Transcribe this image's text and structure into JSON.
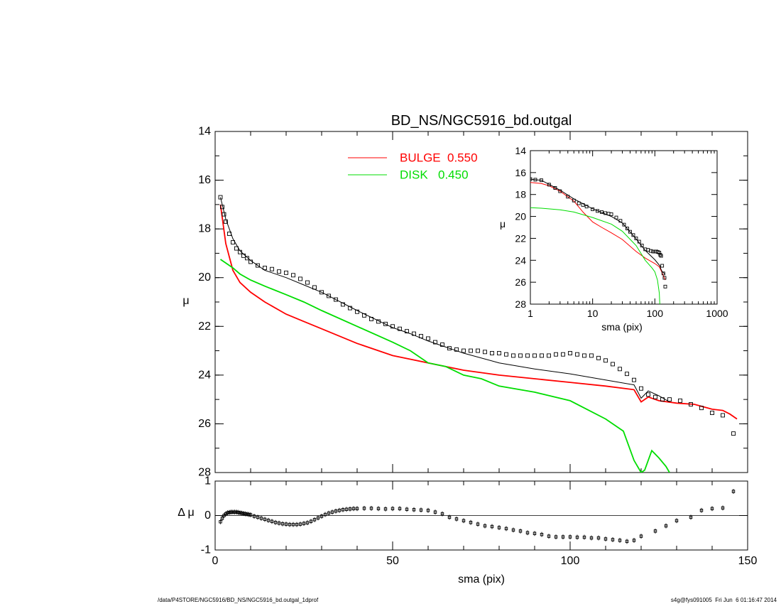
{
  "chart_data": [
    {
      "id": "main",
      "type": "scatter",
      "title": "BD_NS/NGC5916_bd.outgal",
      "xlabel": "",
      "ylabel": "μ",
      "xlim": [
        0,
        150
      ],
      "ylim": [
        28,
        14
      ],
      "y_inverted": true,
      "yticks": [
        "14",
        "16",
        "18",
        "20",
        "22",
        "24",
        "26",
        "28"
      ],
      "legend": [
        {
          "label": "BULGE",
          "value": "0.550",
          "color": "#ff0000"
        },
        {
          "label": "DISK",
          "value": "0.450",
          "color": "#00dd00"
        }
      ],
      "legend_position": "top-center",
      "series": [
        {
          "color": "#ff0000",
          "style": "line",
          "x": [
            1.5,
            3,
            5,
            7,
            10,
            14,
            20,
            25,
            30,
            40,
            50,
            60,
            65,
            70,
            80,
            90,
            100,
            110,
            118,
            120,
            122,
            125,
            130,
            135,
            140,
            143,
            145,
            147
          ],
          "y": [
            17.0,
            18.6,
            19.7,
            20.2,
            20.6,
            21.0,
            21.5,
            21.8,
            22.1,
            22.7,
            23.2,
            23.5,
            23.65,
            23.8,
            24.0,
            24.15,
            24.3,
            24.45,
            24.6,
            25.1,
            24.9,
            25.05,
            25.15,
            25.2,
            25.4,
            25.45,
            25.6,
            25.8
          ]
        },
        {
          "color": "#00dd00",
          "style": "line",
          "x": [
            1.5,
            3,
            5,
            7,
            10,
            14,
            20,
            25,
            30,
            40,
            50,
            55,
            60,
            65,
            70,
            75,
            80,
            90,
            100,
            110,
            115,
            118,
            120,
            121,
            123,
            125,
            127,
            128
          ],
          "y": [
            19.25,
            19.4,
            19.6,
            19.85,
            20.1,
            20.35,
            20.7,
            21.0,
            21.35,
            22.0,
            22.65,
            23.0,
            23.5,
            23.65,
            24.0,
            24.15,
            24.45,
            24.7,
            25.05,
            25.8,
            26.3,
            27.5,
            28.0,
            27.9,
            27.1,
            27.4,
            27.75,
            28.0
          ]
        },
        {
          "color": "#000000",
          "style": "line",
          "x": [
            1.5,
            3,
            5,
            7,
            10,
            14,
            20,
            25,
            30,
            40,
            50,
            55,
            60,
            70,
            80,
            90,
            100,
            110,
            118,
            120,
            122,
            125,
            128
          ],
          "y": [
            16.7,
            17.6,
            18.4,
            18.9,
            19.3,
            19.7,
            20.0,
            20.3,
            20.6,
            21.35,
            22.05,
            22.3,
            22.6,
            23.1,
            23.5,
            23.75,
            23.95,
            24.2,
            24.4,
            24.95,
            24.65,
            24.85,
            25.1
          ]
        },
        {
          "color": "#000000",
          "style": "markers",
          "x": [
            1.5,
            2,
            2.5,
            3,
            4,
            5,
            6,
            7,
            8,
            9,
            10,
            12,
            14,
            16,
            18,
            20,
            22,
            24,
            26,
            28,
            30,
            32,
            34,
            36,
            38,
            40,
            42,
            44,
            46,
            48,
            50,
            52,
            54,
            56,
            58,
            60,
            62,
            64,
            66,
            68,
            70,
            72,
            74,
            76,
            78,
            80,
            82,
            84,
            86,
            88,
            90,
            92,
            94,
            96,
            98,
            100,
            102,
            104,
            106,
            108,
            110,
            112,
            114,
            116,
            118,
            120,
            122,
            124,
            126,
            128,
            131,
            134,
            137,
            140,
            143,
            146
          ],
          "y": [
            16.7,
            17.1,
            17.4,
            17.7,
            18.2,
            18.55,
            18.8,
            18.95,
            19.1,
            19.2,
            19.35,
            19.5,
            19.6,
            19.65,
            19.75,
            19.8,
            19.9,
            20.05,
            20.2,
            20.4,
            20.6,
            20.75,
            20.9,
            21.1,
            21.25,
            21.4,
            21.55,
            21.7,
            21.8,
            21.9,
            22.0,
            22.1,
            22.2,
            22.3,
            22.4,
            22.5,
            22.65,
            22.75,
            22.9,
            22.95,
            23.0,
            23.0,
            23.0,
            23.05,
            23.1,
            23.1,
            23.15,
            23.2,
            23.2,
            23.2,
            23.2,
            23.2,
            23.2,
            23.15,
            23.15,
            23.1,
            23.15,
            23.2,
            23.2,
            23.3,
            23.4,
            23.55,
            23.75,
            23.95,
            24.2,
            24.55,
            24.8,
            24.9,
            25.0,
            25.0,
            25.05,
            25.2,
            25.35,
            25.55,
            25.65,
            26.4
          ]
        }
      ]
    },
    {
      "id": "inset",
      "type": "scatter",
      "xlabel": "sma (pix)",
      "ylabel": "μ",
      "xscale": "log",
      "xlim": [
        1,
        1000
      ],
      "xticks": [
        "1",
        "10",
        "100",
        "1000"
      ],
      "ylim": [
        28,
        14
      ],
      "yticks": [
        "14",
        "16",
        "18",
        "20",
        "22",
        "24",
        "26",
        "28"
      ],
      "series": [
        {
          "color": "#ff0000",
          "style": "line",
          "x": [
            1,
            1.5,
            2,
            3,
            5,
            7,
            10,
            14,
            20,
            30,
            50,
            70,
            100,
            118,
            130,
            147
          ],
          "y": [
            16.9,
            17.0,
            17.2,
            17.7,
            18.6,
            19.6,
            20.5,
            21.0,
            21.5,
            22.1,
            23.2,
            23.8,
            24.3,
            24.6,
            25.1,
            25.8
          ]
        },
        {
          "color": "#00dd00",
          "style": "line",
          "x": [
            1,
            1.5,
            3,
            5,
            10,
            20,
            30,
            50,
            70,
            90,
            100,
            110,
            118,
            120
          ],
          "y": [
            19.2,
            19.25,
            19.4,
            19.6,
            20.1,
            20.7,
            21.35,
            22.65,
            24.0,
            24.7,
            25.05,
            25.8,
            27.0,
            28.0
          ]
        },
        {
          "color": "#000000",
          "style": "line",
          "x": [
            1,
            1.5,
            3,
            5,
            10,
            20,
            30,
            50,
            70,
            100,
            120,
            125,
            130,
            147
          ],
          "y": [
            16.6,
            16.7,
            17.6,
            18.4,
            19.3,
            20.0,
            20.6,
            22.05,
            23.1,
            23.95,
            24.5,
            24.8,
            25.0,
            25.3
          ]
        },
        {
          "color": "#000000",
          "style": "markers",
          "x": [
            1,
            1.2,
            1.5,
            2,
            2.5,
            3,
            4,
            5,
            6,
            7,
            8,
            10,
            12,
            14,
            16,
            18,
            20,
            24,
            28,
            32,
            36,
            40,
            45,
            50,
            56,
            62,
            70,
            78,
            86,
            94,
            100,
            106,
            112,
            118,
            122,
            126,
            131,
            137,
            143,
            147
          ],
          "y": [
            16.6,
            16.65,
            16.7,
            17.1,
            17.4,
            17.7,
            18.2,
            18.55,
            18.8,
            18.95,
            19.1,
            19.35,
            19.5,
            19.6,
            19.7,
            19.75,
            19.8,
            20.1,
            20.4,
            20.75,
            21.1,
            21.4,
            21.7,
            22.0,
            22.3,
            22.65,
            23.0,
            23.05,
            23.15,
            23.2,
            23.2,
            23.2,
            23.25,
            23.3,
            23.5,
            23.6,
            24.5,
            25.2,
            25.6,
            26.4
          ]
        }
      ]
    },
    {
      "id": "residual",
      "type": "scatter",
      "xlabel": "sma (pix)",
      "ylabel": "Δ μ",
      "xlim": [
        0,
        150
      ],
      "xticks": [
        "0",
        "50",
        "100",
        "150"
      ],
      "ylim": [
        -1,
        1
      ],
      "yticks": [
        "1",
        "0",
        "-1"
      ],
      "series": [
        {
          "color": "#000000",
          "style": "markers",
          "x": [
            1.5,
            2,
            2.5,
            3,
            3.5,
            4,
            4.5,
            5,
            5.5,
            6,
            6.5,
            7,
            7.5,
            8,
            8.5,
            9,
            9.5,
            10,
            11,
            12,
            13,
            14,
            15,
            16,
            17,
            18,
            19,
            20,
            21,
            22,
            23,
            24,
            25,
            26,
            27,
            28,
            29,
            30,
            31,
            32,
            33,
            34,
            35,
            36,
            37,
            38,
            39,
            40,
            42,
            44,
            46,
            48,
            50,
            52,
            54,
            56,
            58,
            60,
            62,
            64,
            66,
            68,
            70,
            72,
            74,
            76,
            78,
            80,
            82,
            84,
            86,
            88,
            90,
            92,
            94,
            96,
            98,
            100,
            102,
            104,
            106,
            108,
            110,
            112,
            114,
            116,
            118,
            120,
            124,
            127,
            130,
            134,
            137,
            140,
            143,
            146
          ],
          "y": [
            -0.18,
            -0.08,
            0.0,
            0.05,
            0.08,
            0.09,
            0.1,
            0.1,
            0.1,
            0.1,
            0.09,
            0.08,
            0.07,
            0.06,
            0.05,
            0.04,
            0.03,
            0.02,
            -0.02,
            -0.05,
            -0.08,
            -0.11,
            -0.14,
            -0.17,
            -0.2,
            -0.22,
            -0.24,
            -0.25,
            -0.26,
            -0.26,
            -0.26,
            -0.25,
            -0.23,
            -0.21,
            -0.17,
            -0.12,
            -0.07,
            -0.02,
            0.03,
            0.07,
            0.1,
            0.13,
            0.15,
            0.17,
            0.18,
            0.19,
            0.2,
            0.2,
            0.21,
            0.21,
            0.2,
            0.19,
            0.2,
            0.2,
            0.18,
            0.17,
            0.16,
            0.15,
            0.1,
            0.05,
            -0.05,
            -0.1,
            -0.15,
            -0.2,
            -0.25,
            -0.3,
            -0.32,
            -0.35,
            -0.38,
            -0.42,
            -0.45,
            -0.5,
            -0.52,
            -0.55,
            -0.6,
            -0.62,
            -0.62,
            -0.62,
            -0.63,
            -0.63,
            -0.65,
            -0.65,
            -0.68,
            -0.7,
            -0.72,
            -0.75,
            -0.72,
            -0.6,
            -0.45,
            -0.3,
            -0.15,
            -0.05,
            0.15,
            0.2,
            0.22,
            0.7
          ]
        }
      ]
    }
  ],
  "footer": {
    "left": "/data/P4STORE/NGC5916/BD_NS/NGC5916_bd.outgal_1dprof",
    "right": "s4g@fys091005  Fri Jun  6 01:16:47 2014"
  }
}
